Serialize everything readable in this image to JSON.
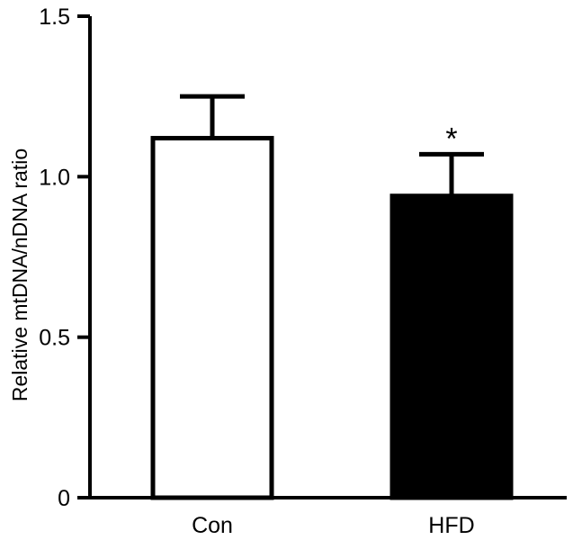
{
  "chart_data": {
    "type": "bar",
    "categories": [
      "Con",
      "HFD"
    ],
    "values": [
      1.12,
      0.94
    ],
    "errors": [
      0.13,
      0.13
    ],
    "bar_fills": [
      "#ffffff",
      "#000000"
    ],
    "annotations": [
      "",
      "*"
    ],
    "ylabel": "Relative mtDNA/nDNA ratio",
    "xlabel": "",
    "ylim": [
      0,
      1.5
    ],
    "yticks": [
      0,
      0.5,
      1.0,
      1.5
    ],
    "ytick_labels": [
      "0",
      "0.5",
      "1.0",
      "1.5"
    ],
    "grid": false
  }
}
